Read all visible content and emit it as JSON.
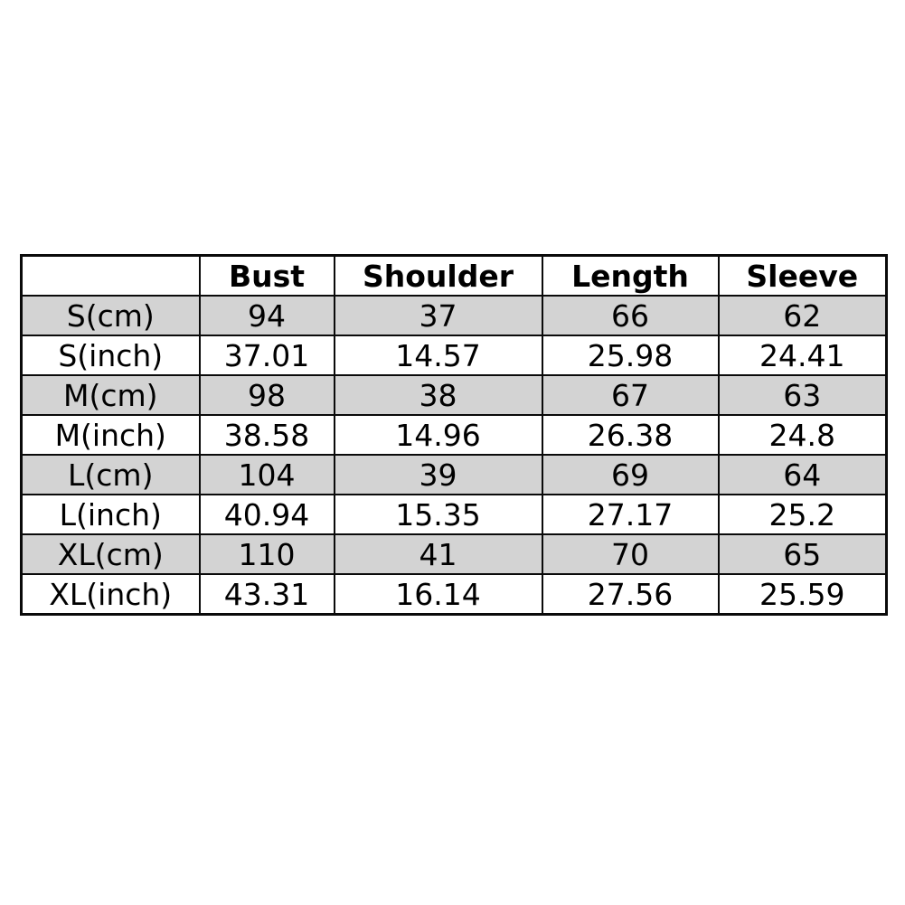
{
  "colors": {
    "row-shaded": "#d3d3d3",
    "border": "#0a0a0a",
    "text": "#000000"
  },
  "chart_data": {
    "type": "table",
    "title": "",
    "columns": [
      "",
      "Bust",
      "Shoulder",
      "Length",
      "Sleeve"
    ],
    "rows": [
      {
        "label": "S(cm)",
        "values": [
          "94",
          "37",
          "66",
          "62"
        ]
      },
      {
        "label": "S(inch)",
        "values": [
          "37.01",
          "14.57",
          "25.98",
          "24.41"
        ]
      },
      {
        "label": "M(cm)",
        "values": [
          "98",
          "38",
          "67",
          "63"
        ]
      },
      {
        "label": "M(inch)",
        "values": [
          "38.58",
          "14.96",
          "26.38",
          "24.8"
        ]
      },
      {
        "label": "L(cm)",
        "values": [
          "104",
          "39",
          "69",
          "64"
        ]
      },
      {
        "label": "L(inch)",
        "values": [
          "40.94",
          "15.35",
          "27.17",
          "25.2"
        ]
      },
      {
        "label": "XL(cm)",
        "values": [
          "110",
          "41",
          "70",
          "65"
        ]
      },
      {
        "label": "XL(inch)",
        "values": [
          "43.31",
          "16.14",
          "27.56",
          "25.59"
        ]
      }
    ],
    "layout_hints": {
      "shaded_rows": "cm rows (1st, 3rd, 5th, 7th data rows) have light gray background",
      "header_style": "bold, white background",
      "grid": "black cell borders, thicker outer border",
      "alignment": "all cells centered"
    }
  }
}
